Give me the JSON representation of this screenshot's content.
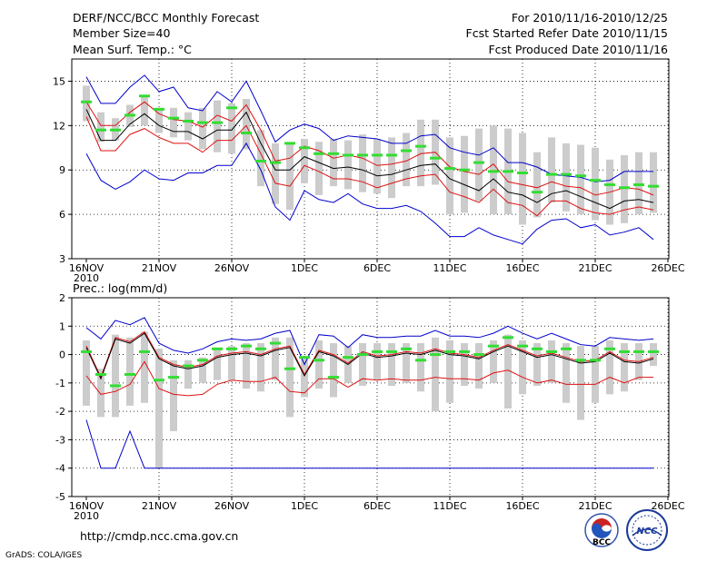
{
  "header": {
    "title": "DERF/NCC/BCC Monthly Forecast",
    "member_size": "Member Size=40",
    "variable_temp": "Mean Surf. Temp.: °C",
    "period": "For 2010/11/16-2010/12/25",
    "started": "Fcst Started Refer Date 2010/11/15",
    "produced": "Fcst Produced Date 2010/11/16"
  },
  "footer": {
    "url": "http://cmdp.ncc.cma.gov.cn",
    "grads": "GrADS: COLA/IGES",
    "logo_bcc": "BCC",
    "logo_ncc": "NCC"
  },
  "colors": {
    "mean": "#000000",
    "spread": "#dd1111",
    "extreme": "#0000cc",
    "box": "#cccccc",
    "obs": "#33dd33"
  },
  "chart_data": [
    {
      "type": "line",
      "title": "Mean Surf. Temp.: °C",
      "x_tick_labels": [
        "16NOV",
        "21NOV",
        "26NOV",
        "1DEC",
        "6DEC",
        "11DEC",
        "16DEC",
        "21DEC",
        "26DEC"
      ],
      "x_year_label": "2010",
      "ylim": [
        3,
        16.5
      ],
      "y_ticks": [
        3,
        6,
        9,
        12,
        15
      ],
      "x_day_index": [
        0,
        1,
        2,
        3,
        4,
        5,
        6,
        7,
        8,
        9,
        10,
        11,
        12,
        13,
        14,
        15,
        16,
        17,
        18,
        19,
        20,
        21,
        22,
        23,
        24,
        25,
        26,
        27,
        28,
        29,
        30,
        31,
        32,
        33,
        34,
        35,
        36,
        37,
        38,
        39
      ],
      "series": [
        {
          "name": "ensemble max",
          "color": "#0000cc",
          "values": [
            15.3,
            13.5,
            13.5,
            14.6,
            15.4,
            14.3,
            14.6,
            13.2,
            13.0,
            14.3,
            13.6,
            15.0,
            13.0,
            10.9,
            11.7,
            12.1,
            11.8,
            11.0,
            11.3,
            11.2,
            11.1,
            10.8,
            10.8,
            11.3,
            11.4,
            10.5,
            10.2,
            10.0,
            10.5,
            9.5,
            9.5,
            9.2,
            8.7,
            8.6,
            8.5,
            8.2,
            8.3,
            8.9,
            8.9,
            8.9
          ]
        },
        {
          "name": "ensemble upper",
          "color": "#dd1111",
          "values": [
            13.6,
            12.0,
            12.0,
            12.9,
            13.6,
            12.8,
            12.4,
            12.3,
            11.9,
            12.7,
            12.3,
            13.4,
            11.7,
            9.6,
            9.8,
            10.6,
            10.3,
            9.8,
            10.0,
            9.8,
            9.3,
            9.4,
            9.6,
            10.1,
            10.2,
            9.2,
            8.9,
            8.7,
            9.4,
            8.2,
            8.0,
            7.8,
            8.2,
            7.9,
            7.8,
            7.3,
            7.5,
            7.8,
            7.7,
            7.3
          ]
        },
        {
          "name": "ensemble mean",
          "color": "#000000",
          "values": [
            13.1,
            11.0,
            11.0,
            12.1,
            12.8,
            12.0,
            11.6,
            11.6,
            11.1,
            11.7,
            11.7,
            12.9,
            10.8,
            9.0,
            9.0,
            9.9,
            9.5,
            9.1,
            9.2,
            9.0,
            8.6,
            8.7,
            9.0,
            9.3,
            9.4,
            8.4,
            8.0,
            7.6,
            8.4,
            7.5,
            7.3,
            6.8,
            7.4,
            7.6,
            7.2,
            6.8,
            6.4,
            6.9,
            7.0,
            6.8
          ]
        },
        {
          "name": "ensemble lower",
          "color": "#dd1111",
          "values": [
            12.6,
            10.3,
            10.3,
            11.4,
            11.8,
            11.2,
            10.8,
            10.8,
            10.2,
            11.0,
            11.0,
            12.0,
            10.1,
            8.1,
            7.9,
            9.3,
            8.9,
            8.4,
            8.4,
            8.2,
            7.8,
            8.1,
            8.4,
            8.6,
            8.7,
            7.5,
            7.2,
            6.8,
            7.7,
            6.8,
            6.6,
            5.9,
            6.9,
            6.9,
            6.4,
            6.1,
            6.0,
            6.3,
            6.5,
            6.3
          ]
        },
        {
          "name": "ensemble min",
          "color": "#0000cc",
          "values": [
            10.1,
            8.3,
            7.7,
            8.2,
            9.0,
            8.4,
            8.3,
            8.8,
            8.8,
            9.3,
            9.3,
            10.8,
            9.0,
            6.5,
            5.6,
            7.6,
            7.0,
            6.8,
            7.4,
            6.7,
            6.4,
            6.4,
            6.6,
            6.2,
            5.4,
            4.5,
            4.5,
            5.1,
            4.6,
            4.3,
            4.0,
            5.0,
            5.6,
            5.7,
            5.1,
            5.3,
            4.6,
            4.8,
            5.1,
            4.3
          ]
        }
      ],
      "boxes": {
        "name": "member range",
        "low": [
          12.3,
          10.9,
          11.0,
          11.9,
          12.0,
          11.5,
          11.2,
          11.0,
          10.4,
          10.2,
          10.1,
          10.4,
          7.9,
          6.7,
          6.3,
          8.1,
          7.3,
          7.9,
          7.7,
          7.5,
          7.4,
          7.1,
          7.9,
          7.9,
          8.0,
          6.0,
          6.1,
          6.9,
          6.0,
          6.0,
          5.3,
          5.8,
          6.8,
          6.2,
          6.0,
          5.6,
          5.3,
          5.4,
          6.0,
          6.1
        ],
        "high": [
          14.7,
          12.9,
          12.5,
          13.4,
          14.0,
          13.2,
          13.2,
          12.9,
          13.2,
          13.7,
          13.5,
          13.8,
          11.7,
          10.8,
          10.8,
          11.1,
          10.9,
          11.1,
          11.0,
          11.4,
          11.1,
          11.2,
          11.5,
          12.4,
          12.4,
          11.2,
          11.3,
          11.8,
          12.0,
          11.8,
          11.5,
          10.2,
          11.2,
          10.8,
          10.7,
          10.5,
          9.7,
          10.0,
          10.2,
          10.2
        ]
      },
      "observed": {
        "name": "observation",
        "values": [
          13.6,
          11.7,
          11.7,
          12.7,
          14.0,
          13.1,
          12.5,
          12.3,
          12.2,
          12.2,
          13.2,
          11.5,
          9.6,
          9.5,
          10.8,
          10.5,
          10.1,
          10.1,
          10.0,
          10.0,
          10.0,
          10.0,
          10.3,
          10.6,
          9.8,
          9.1,
          9.0,
          9.5,
          8.9,
          8.9,
          8.8,
          7.5,
          8.7,
          8.7,
          8.6,
          8.3,
          8.0,
          7.8,
          8.0,
          7.9
        ]
      }
    },
    {
      "type": "line",
      "title": "Prec.: log(mm/d)",
      "x_tick_labels": [
        "16NOV",
        "21NOV",
        "26NOV",
        "1DEC",
        "6DEC",
        "11DEC",
        "16DEC",
        "21DEC",
        "26DEC"
      ],
      "x_year_label": "2010",
      "ylim": [
        -5,
        2
      ],
      "y_ticks": [
        -5,
        -4,
        -3,
        -2,
        -1,
        0,
        1,
        2
      ],
      "x_day_index": [
        0,
        1,
        2,
        3,
        4,
        5,
        6,
        7,
        8,
        9,
        10,
        11,
        12,
        13,
        14,
        15,
        16,
        17,
        18,
        19,
        20,
        21,
        22,
        23,
        24,
        25,
        26,
        27,
        28,
        29,
        30,
        31,
        32,
        33,
        34,
        35,
        36,
        37,
        38,
        39
      ],
      "series": [
        {
          "name": "ensemble max",
          "color": "#0000cc",
          "values": [
            0.95,
            0.55,
            1.2,
            1.05,
            1.3,
            0.4,
            0.15,
            0.05,
            0.2,
            0.45,
            0.55,
            0.5,
            0.55,
            0.75,
            0.85,
            -0.35,
            0.7,
            0.65,
            0.25,
            0.7,
            0.6,
            0.6,
            0.65,
            0.65,
            0.85,
            0.65,
            0.65,
            0.6,
            0.75,
            1.0,
            0.75,
            0.55,
            0.75,
            0.55,
            0.35,
            0.3,
            0.6,
            0.55,
            0.5,
            0.55
          ]
        },
        {
          "name": "ensemble upper",
          "color": "#dd1111",
          "values": [
            0.3,
            -0.8,
            0.6,
            0.45,
            0.8,
            -0.1,
            -0.35,
            -0.45,
            -0.35,
            -0.05,
            0.05,
            0.1,
            0.0,
            0.2,
            0.3,
            -0.7,
            0.15,
            0.0,
            -0.3,
            0.1,
            -0.05,
            0.0,
            0.1,
            0.05,
            0.2,
            0.05,
            0.0,
            -0.1,
            0.15,
            0.35,
            0.15,
            -0.05,
            0.05,
            -0.1,
            -0.25,
            -0.2,
            0.1,
            -0.2,
            -0.25,
            -0.1
          ]
        },
        {
          "name": "ensemble mean",
          "color": "#000000",
          "values": [
            0.25,
            -0.85,
            0.55,
            0.4,
            0.75,
            -0.15,
            -0.4,
            -0.5,
            -0.4,
            -0.1,
            0.0,
            0.05,
            -0.05,
            0.15,
            0.25,
            -0.75,
            0.1,
            -0.05,
            -0.35,
            0.05,
            -0.1,
            -0.05,
            0.05,
            0.0,
            0.15,
            0.0,
            -0.05,
            -0.15,
            0.1,
            0.3,
            0.1,
            -0.1,
            0.0,
            -0.15,
            -0.3,
            -0.25,
            0.05,
            -0.25,
            -0.3,
            -0.15
          ]
        },
        {
          "name": "ensemble lower",
          "color": "#dd1111",
          "values": [
            -0.75,
            -1.4,
            -1.3,
            -1.05,
            -0.25,
            -1.2,
            -1.4,
            -1.45,
            -1.4,
            -1.05,
            -0.9,
            -0.95,
            -0.95,
            -0.8,
            -1.3,
            -1.35,
            -0.85,
            -0.85,
            -1.15,
            -0.85,
            -0.9,
            -0.85,
            -0.9,
            -0.9,
            -0.8,
            -0.85,
            -0.85,
            -0.9,
            -0.65,
            -0.55,
            -0.8,
            -1.0,
            -0.9,
            -1.05,
            -1.05,
            -1.05,
            -0.8,
            -1.0,
            -0.8,
            -0.8
          ]
        },
        {
          "name": "ensemble min",
          "color": "#0000cc",
          "values": [
            -2.3,
            -4.0,
            -4.0,
            -2.7,
            -4.0,
            -4.0,
            -4.0,
            -4.0,
            -4.0,
            -4.0,
            -4.0,
            -4.0,
            -4.0,
            -4.0,
            -4.0,
            -4.0,
            -4.0,
            -4.0,
            -4.0,
            -4.0,
            -4.0,
            -4.0,
            -4.0,
            -4.0,
            -4.0,
            -4.0,
            -4.0,
            -4.0,
            -4.0,
            -4.0,
            -4.0,
            -4.0,
            -4.0,
            -4.0,
            -4.0,
            -4.0,
            -4.0,
            -4.0,
            -4.0,
            -4.0
          ]
        }
      ],
      "boxes": {
        "name": "member range",
        "low": [
          -1.8,
          -2.2,
          -2.2,
          -1.8,
          -1.7,
          -4.0,
          -2.7,
          -1.2,
          -1.0,
          -0.9,
          -0.9,
          -1.2,
          -1.3,
          -0.9,
          -2.2,
          -1.5,
          -1.2,
          -1.5,
          -1.0,
          -1.1,
          -0.9,
          -1.1,
          -1.0,
          -1.3,
          -2.0,
          -1.7,
          -1.1,
          -1.2,
          -1.0,
          -1.9,
          -1.4,
          -1.1,
          -1.0,
          -1.7,
          -2.3,
          -1.7,
          -1.4,
          -1.3,
          -0.9,
          -0.4
        ],
        "high": [
          0.5,
          -0.5,
          0.7,
          0.6,
          0.8,
          0.2,
          -0.2,
          -0.2,
          -0.1,
          0.2,
          0.3,
          0.4,
          0.4,
          0.6,
          0.6,
          -0.1,
          0.5,
          0.4,
          0.3,
          0.4,
          0.4,
          0.4,
          0.4,
          0.4,
          0.6,
          0.5,
          0.4,
          0.4,
          0.5,
          0.7,
          0.5,
          0.4,
          0.5,
          0.4,
          0.3,
          0.3,
          0.5,
          0.4,
          0.4,
          0.4
        ]
      },
      "observed": {
        "name": "observation",
        "values": [
          0.1,
          -0.7,
          -1.1,
          -0.7,
          0.1,
          -0.9,
          -0.8,
          -0.4,
          -0.2,
          0.2,
          0.2,
          0.3,
          0.2,
          0.4,
          -0.5,
          -0.1,
          -0.2,
          -0.8,
          -0.1,
          0.0,
          0.1,
          0.1,
          0.2,
          -0.2,
          0.0,
          0.1,
          0.1,
          0.0,
          0.3,
          0.6,
          0.3,
          0.2,
          0.1,
          0.2,
          -0.2,
          -0.2,
          0.2,
          0.1,
          0.1,
          0.1
        ]
      }
    }
  ]
}
